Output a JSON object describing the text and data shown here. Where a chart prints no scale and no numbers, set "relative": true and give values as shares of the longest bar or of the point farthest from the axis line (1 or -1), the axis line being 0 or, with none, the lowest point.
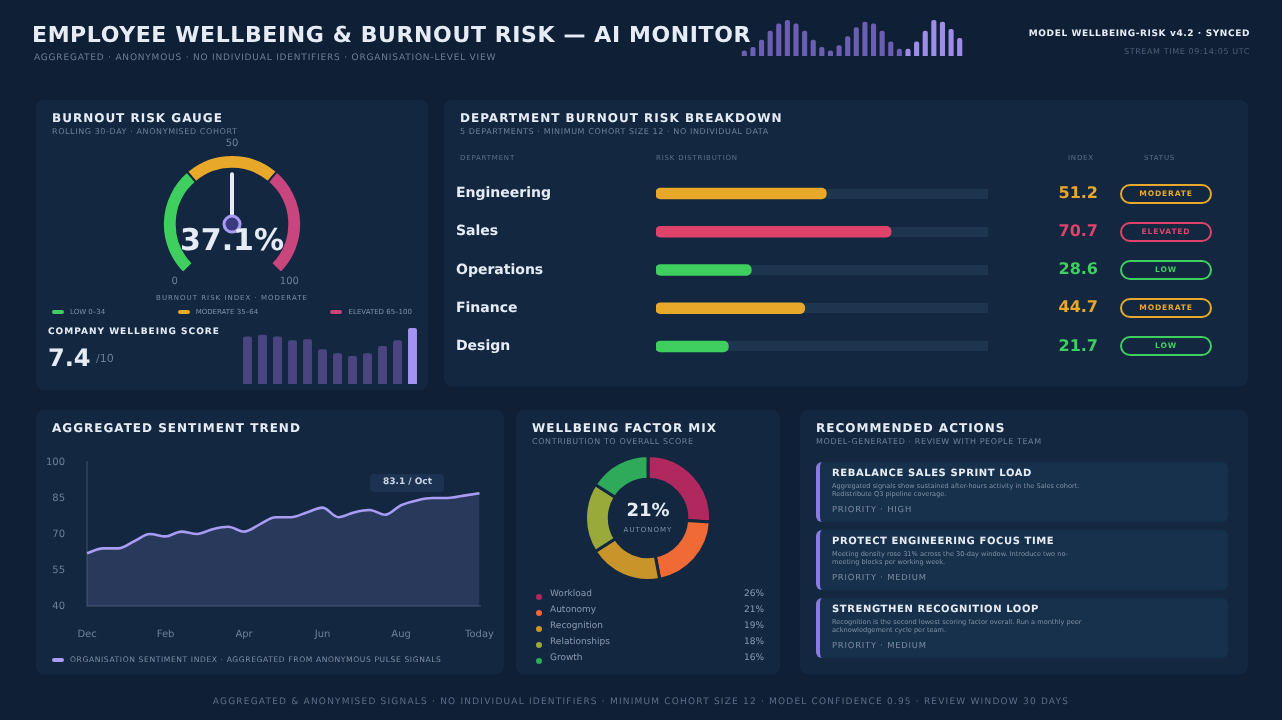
{
  "chart_data": [
    {
      "type": "other",
      "title": "EMPLOYEE WELLBEING & BURNOUT RISK — AI MONITOR",
      "subtitle": "AGGREGATED · ANONYMOUS · NO INDIVIDUAL IDENTIFIERS · ORGANISATION-LEVEL VIEW",
      "annotations": [
        "MODEL WELLBEING-RISK v4.2 · SYNCED",
        "STREAM TIME 09:14:05 UTC"
      ]
    },
    {
      "type": "bar",
      "relative": true,
      "categories": [
        null,
        null,
        null,
        null,
        null,
        null,
        null,
        null,
        null,
        null,
        null,
        null,
        null,
        null,
        null,
        null,
        null,
        null,
        null,
        null,
        null,
        null,
        null,
        null,
        null,
        null
      ],
      "values": [
        0.15,
        0.25,
        0.45,
        0.7,
        0.9,
        1.0,
        0.9,
        0.7,
        0.45,
        0.25,
        0.15,
        0.3,
        0.55,
        0.8,
        0.95,
        0.9,
        0.7,
        0.4,
        0.2,
        0.2,
        0.4,
        0.7,
        1.0,
        0.95,
        0.75,
        0.5
      ],
      "colors": [
        "#6a5fb0",
        "#6a5fb0",
        "#6a5fb0",
        "#6a5fb0",
        "#6a5fb0",
        "#6a5fb0",
        "#6a5fb0",
        "#6a5fb0",
        "#6a5fb0",
        "#6a5fb0",
        "#6a5fb0",
        "#6a5fb0",
        "#6a5fb0",
        "#6a5fb0",
        "#6a5fb0",
        "#6a5fb0",
        "#6a5fb0",
        "#6a5fb0",
        "#6a5fb0",
        "#9d8de8",
        "#9d8de8",
        "#9d8de8",
        "#9d8de8",
        "#9d8de8",
        "#9d8de8",
        "#9d8de8"
      ]
    },
    {
      "type": "donut",
      "title": "BURNOUT RISK GAUGE",
      "subtitle": "ROLLING 30-DAY · ANONYMISED COHORT",
      "categories": [
        "LOW 0–34",
        "MODERATE 35–64",
        "ELEVATED 65–100"
      ],
      "values": [
        35,
        30,
        35
      ],
      "colors": [
        "#3ecf5f",
        "#e8a82a",
        "#c9457e"
      ],
      "needle": "MODERATE 35–64",
      "legend": "bottom",
      "annotations": [
        "37.1%",
        "BURNOUT RISK INDEX · MODERATE",
        "0",
        "50",
        "100"
      ]
    },
    {
      "type": "other",
      "title": "COMPANY WELLBEING SCORE",
      "annotations": [
        "7.4",
        "/10"
      ]
    },
    {
      "type": "bar",
      "relative": true,
      "categories": [
        null,
        null,
        null,
        null,
        null,
        null,
        null,
        null,
        null,
        null,
        null,
        null
      ],
      "values": [
        0.85,
        0.88,
        0.85,
        0.78,
        0.8,
        0.62,
        0.55,
        0.5,
        0.55,
        0.68,
        0.78,
        1.0
      ],
      "colors": [
        "#4a4580",
        "#4a4580",
        "#4a4580",
        "#4a4580",
        "#4a4580",
        "#4a4580",
        "#4a4580",
        "#4a4580",
        "#4a4580",
        "#4a4580",
        "#4a4580",
        "#a493f0"
      ]
    },
    {
      "type": "bar",
      "orientation": "horizontal",
      "title": "DEPARTMENT BURNOUT RISK BREAKDOWN",
      "subtitle": "5 DEPARTMENTS · MINIMUM COHORT SIZE 12 · NO INDIVIDUAL DATA",
      "categories": [
        "Engineering",
        "Sales",
        "Operations",
        "Finance",
        "Design"
      ],
      "values": [
        51.2,
        70.7,
        28.6,
        44.7,
        21.7
      ],
      "colors": [
        "#e8a82a",
        "#e0436a",
        "#3ecf5f",
        "#e8a82a",
        "#3ecf5f"
      ],
      "xlim": [
        0,
        100
      ],
      "grid": "y",
      "tick_labels": "y",
      "data_labels": true,
      "annotations": [
        "DEPARTMENT",
        "RISK DISTRIBUTION",
        "INDEX",
        "STATUS",
        "MODERATE",
        "ELEVATED",
        "LOW",
        "MODERATE",
        "LOW"
      ]
    },
    {
      "type": "area",
      "title": "AGGREGATED SENTIMENT TREND",
      "categories": [
        "Dec",
        null,
        null,
        null,
        null,
        "Feb",
        null,
        null,
        null,
        null,
        "Apr",
        null,
        null,
        null,
        null,
        "Jun",
        null,
        null,
        null,
        null,
        "Aug",
        null,
        null,
        null,
        null,
        "Today"
      ],
      "series": [
        {
          "name": "ORGANISATION SENTIMENT INDEX · AGGREGATED FROM ANONYMOUS PULSE SIGNALS",
          "color": "#a99cf5",
          "values": [
            62,
            64,
            64,
            67,
            70,
            69,
            71,
            70,
            72,
            73,
            71,
            74,
            77,
            77,
            79,
            81,
            77,
            79,
            80,
            78,
            82,
            84,
            85,
            85,
            86,
            87
          ]
        }
      ],
      "ylim": [
        40,
        100
      ],
      "yticks": [
        40,
        55,
        70,
        85,
        100
      ],
      "legend": "bottom",
      "annotations": [
        "83.1 / Oct"
      ]
    },
    {
      "type": "donut",
      "title": "WELLBEING FACTOR MIX",
      "subtitle": "CONTRIBUTION TO OVERALL SCORE",
      "categories": [
        "Workload",
        "Autonomy",
        "Recognition",
        "Relationships",
        "Growth"
      ],
      "values": [
        26,
        21,
        19,
        18,
        16
      ],
      "value_labels": [
        "26%",
        "21%",
        "19%",
        "18%",
        "16%"
      ],
      "colors": [
        "#b0285e",
        "#f06a35",
        "#c9952a",
        "#9aaa3a",
        "#2eaa5a"
      ],
      "legend": "bottom",
      "annotations": [
        "21%",
        "AUTONOMY"
      ]
    },
    {
      "type": "other",
      "title": "RECOMMENDED ACTIONS",
      "subtitle": "MODEL-GENERATED · REVIEW WITH PEOPLE TEAM",
      "annotations": [
        "REBALANCE SALES SPRINT LOAD",
        "Aggregated signals show sustained after-hours activity in the Sales cohort. Redistribute Q3 pipeline coverage.",
        "PRIORITY · HIGH",
        "PROTECT ENGINEERING FOCUS TIME",
        "Meeting density rose 31% across the 30-day window. Introduce two no-meeting blocks per working week.",
        "PRIORITY · MEDIUM",
        "STRENGTHEN RECOGNITION LOOP",
        "Recognition is the second lowest scoring factor overall. Run a monthly peer acknowledgement cycle per team.",
        "PRIORITY · MEDIUM"
      ]
    },
    {
      "type": "other",
      "annotations": [
        "AGGREGATED & ANONYMISED SIGNALS · NO INDIVIDUAL IDENTIFIERS · MINIMUM COHORT SIZE 12 · MODEL CONFIDENCE 0.95 · REVIEW WINDOW 30 DAYS"
      ]
    }
  ]
}
